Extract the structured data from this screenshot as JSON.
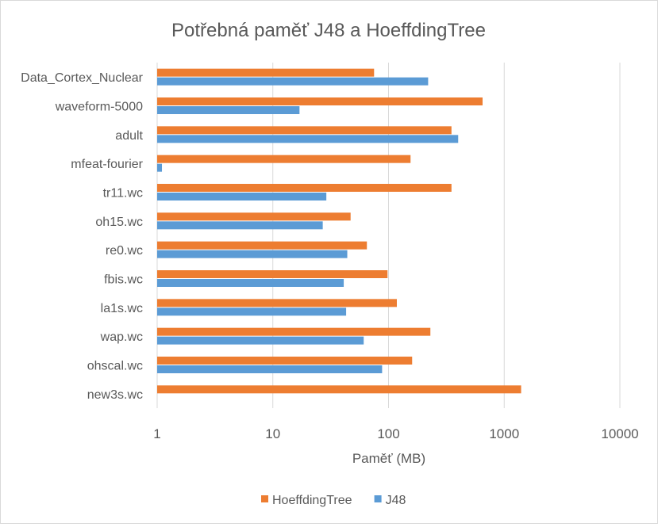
{
  "chart_data": {
    "type": "bar",
    "orientation": "horizontal",
    "title": "Potřebná paměť J48 a HoeffdingTree",
    "xlabel": "Paměť (MB)",
    "ylabel": "",
    "x_scale": "log",
    "xlim": [
      1,
      10000
    ],
    "x_ticks": [
      "1",
      "10",
      "100",
      "1000",
      "10000"
    ],
    "grid": true,
    "legend_position": "bottom",
    "categories": [
      "Data_Cortex_Nuclear",
      "waveform-5000",
      "adult",
      "mfeat-fourier",
      "tr11.wc",
      "oh15.wc",
      "re0.wc",
      "fbis.wc",
      "la1s.wc",
      "wap.wc",
      "ohscal.wc",
      "new3s.wc"
    ],
    "series": [
      {
        "name": "HoeffdingTree",
        "color": "#ed7d31",
        "values": [
          75,
          650,
          350,
          155,
          350,
          47,
          65,
          98,
          118,
          230,
          160,
          1400
        ]
      },
      {
        "name": "J48",
        "color": "#5b9bd5",
        "values": [
          220,
          17,
          400,
          1.1,
          29,
          27,
          44,
          41,
          43,
          61,
          88,
          null
        ]
      }
    ]
  }
}
